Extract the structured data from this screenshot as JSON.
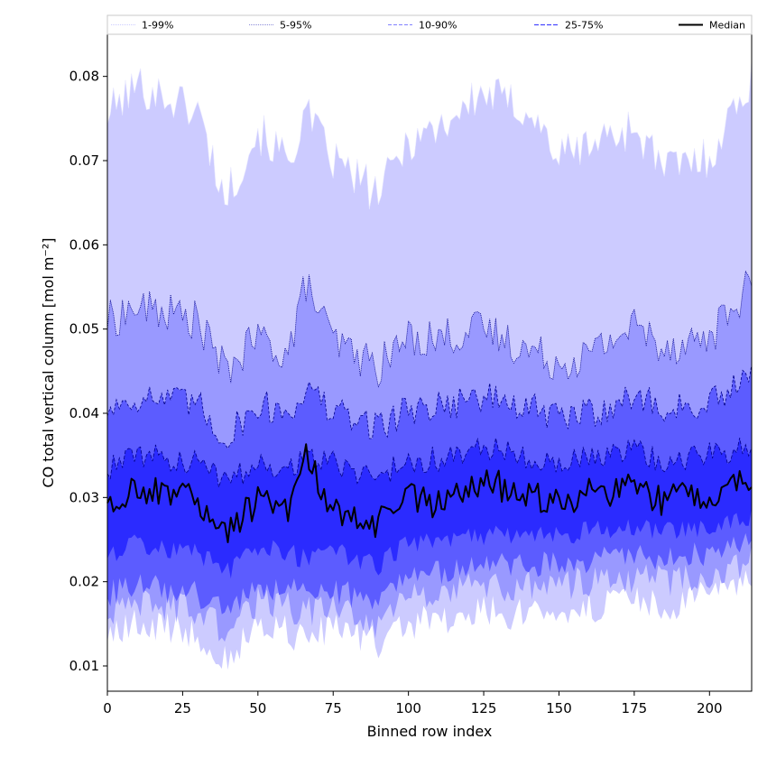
{
  "chart_data": {
    "type": "area",
    "xlabel": "Binned row index",
    "ylabel": "CO total vertical column [mol m⁻²]",
    "xlim": [
      0,
      214
    ],
    "ylim": [
      0.007,
      0.085
    ],
    "xticks": [
      0,
      25,
      50,
      75,
      100,
      125,
      150,
      175,
      200
    ],
    "yticks": [
      0.01,
      0.02,
      0.03,
      0.04,
      0.05,
      0.06,
      0.07,
      0.08
    ],
    "ytick_labels": [
      "0.01",
      "0.02",
      "0.03",
      "0.04",
      "0.05",
      "0.06",
      "0.07",
      "0.08"
    ],
    "legend": {
      "position": "top",
      "entries": [
        "1-99%",
        "5-95%",
        "10-90%",
        "25-75%",
        "Median"
      ]
    },
    "band_colors": [
      "#cccbff",
      "#9999ff",
      "#5c5cff",
      "#2b2bff"
    ],
    "line_color": "#000000",
    "anchor_x": [
      0,
      10,
      20,
      30,
      39,
      50,
      60,
      66,
      75,
      90,
      100,
      110,
      125,
      140,
      150,
      160,
      175,
      185,
      200,
      214
    ],
    "bands": [
      {
        "name": "1-99%",
        "lower": [
          0.0135,
          0.0148,
          0.0145,
          0.014,
          0.0105,
          0.015,
          0.014,
          0.0135,
          0.0145,
          0.0125,
          0.015,
          0.0155,
          0.0165,
          0.016,
          0.0165,
          0.017,
          0.0175,
          0.017,
          0.0185,
          0.0195
        ],
        "upper": [
          0.0755,
          0.079,
          0.0775,
          0.076,
          0.0655,
          0.0735,
          0.07,
          0.0755,
          0.07,
          0.066,
          0.0725,
          0.074,
          0.078,
          0.076,
          0.0705,
          0.072,
          0.074,
          0.069,
          0.0705,
          0.08
        ]
      },
      {
        "name": "5-95%",
        "lower": [
          0.016,
          0.0175,
          0.017,
          0.0165,
          0.014,
          0.0175,
          0.017,
          0.0165,
          0.017,
          0.015,
          0.018,
          0.0185,
          0.0195,
          0.0195,
          0.0195,
          0.02,
          0.0205,
          0.02,
          0.021,
          0.0225
        ],
        "upper": [
          0.051,
          0.0525,
          0.052,
          0.051,
          0.045,
          0.049,
          0.047,
          0.0555,
          0.0485,
          0.0455,
          0.049,
          0.049,
          0.05,
          0.0475,
          0.046,
          0.047,
          0.0505,
          0.048,
          0.049,
          0.0555
        ]
      },
      {
        "name": "10-90%",
        "lower": [
          0.0185,
          0.0195,
          0.019,
          0.0185,
          0.0165,
          0.0195,
          0.019,
          0.0185,
          0.019,
          0.0175,
          0.0205,
          0.021,
          0.022,
          0.022,
          0.022,
          0.0225,
          0.023,
          0.0225,
          0.0235,
          0.025
        ],
        "upper": [
          0.0405,
          0.042,
          0.0415,
          0.041,
          0.037,
          0.041,
          0.04,
          0.043,
          0.04,
          0.0385,
          0.0405,
          0.041,
          0.042,
          0.0405,
          0.0395,
          0.04,
          0.042,
          0.0405,
          0.041,
          0.044
        ]
      },
      {
        "name": "25-75%",
        "lower": [
          0.023,
          0.0245,
          0.024,
          0.0235,
          0.021,
          0.024,
          0.0235,
          0.0225,
          0.0235,
          0.022,
          0.0245,
          0.025,
          0.0255,
          0.0255,
          0.0255,
          0.026,
          0.0265,
          0.026,
          0.0265,
          0.0275
        ],
        "upper": [
          0.0335,
          0.035,
          0.0345,
          0.034,
          0.032,
          0.034,
          0.0335,
          0.035,
          0.034,
          0.0325,
          0.0345,
          0.0345,
          0.036,
          0.035,
          0.034,
          0.0345,
          0.0355,
          0.0345,
          0.035,
          0.036
        ]
      }
    ],
    "median": {
      "name": "Median",
      "values": [
        0.029,
        0.031,
        0.0305,
        0.03,
        0.026,
        0.0295,
        0.028,
        0.035,
        0.0285,
        0.027,
        0.03,
        0.029,
        0.032,
        0.03,
        0.0295,
        0.0305,
        0.031,
        0.0295,
        0.0305,
        0.032
      ]
    }
  }
}
